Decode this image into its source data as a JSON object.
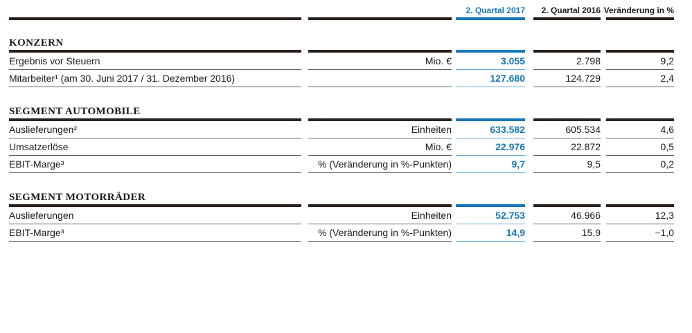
{
  "colors": {
    "accent_blue": "#1577bc",
    "accent_blue_light": "#64a9d9",
    "bar_black": "#2a211d",
    "rule_gray": "#5f5f5f"
  },
  "header": {
    "col_2017": "2. Quartal 2017",
    "col_2016": "2. Quartal 2016",
    "col_change": "Veränderung in %"
  },
  "sections": [
    {
      "title": "KONZERN",
      "rows": [
        {
          "label": "Ergebnis vor Steuern",
          "unit": "Mio. €",
          "q2_2017": "3.055",
          "q2_2016": "2.798",
          "change": "9,2"
        },
        {
          "label": "Mitarbeiter¹ (am 30. Juni 2017 / 31. Dezember 2016)",
          "unit": "",
          "q2_2017": "127.680",
          "q2_2016": "124.729",
          "change": "2,4"
        }
      ]
    },
    {
      "title": "SEGMENT AUTOMOBILE",
      "rows": [
        {
          "label": "Auslieferungen²",
          "unit": "Einheiten",
          "q2_2017": "633.582",
          "q2_2016": "605.534",
          "change": "4,6"
        },
        {
          "label": "Umsatzerlöse",
          "unit": "Mio. €",
          "q2_2017": "22.976",
          "q2_2016": "22.872",
          "change": "0,5"
        },
        {
          "label": "EBIT-Marge³",
          "unit": "% (Veränderung in %-Punkten)",
          "q2_2017": "9,7",
          "q2_2016": "9,5",
          "change": "0,2"
        }
      ]
    },
    {
      "title": "SEGMENT MOTORRÄDER",
      "rows": [
        {
          "label": "Auslieferungen",
          "unit": "Einheiten",
          "q2_2017": "52.753",
          "q2_2016": "46.966",
          "change": "12,3"
        },
        {
          "label": "EBIT-Marge³",
          "unit": "% (Veränderung in %-Punkten)",
          "q2_2017": "14,9",
          "q2_2016": "15,9",
          "change": "−1,0"
        }
      ]
    }
  ]
}
